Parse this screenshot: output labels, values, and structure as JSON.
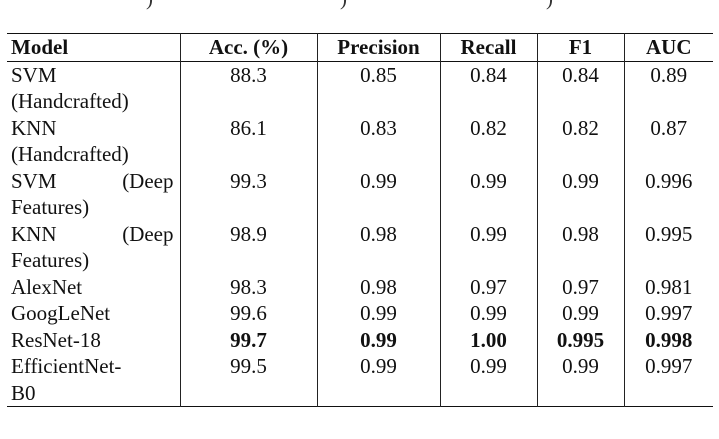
{
  "caption_fragment": [
    ")",
    ")",
    ")"
  ],
  "columns": [
    "Model",
    "Acc. (%)",
    "Precision",
    "Recall",
    "F1",
    "AUC"
  ],
  "rows": [
    {
      "model_line1": "SVM",
      "model_line2": "(Handcrafted)",
      "acc": "88.3",
      "precision": "0.85",
      "recall": "0.84",
      "f1": "0.84",
      "auc": "0.89"
    },
    {
      "model_line1": "KNN",
      "model_line2": "(Handcrafted)",
      "acc": "86.1",
      "precision": "0.83",
      "recall": "0.82",
      "f1": "0.82",
      "auc": "0.87"
    },
    {
      "model_line1": "SVM (Deep",
      "model_line2": "Features)",
      "acc": "99.3",
      "precision": "0.99",
      "recall": "0.99",
      "f1": "0.99",
      "auc": "0.996"
    },
    {
      "model_line1": "KNN (Deep",
      "model_line2": "Features)",
      "acc": "98.9",
      "precision": "0.98",
      "recall": "0.99",
      "f1": "0.98",
      "auc": "0.995"
    },
    {
      "model_line1": "AlexNet",
      "model_line2": "",
      "acc": "98.3",
      "precision": "0.98",
      "recall": "0.97",
      "f1": "0.97",
      "auc": "0.981"
    },
    {
      "model_line1": "GoogLeNet",
      "model_line2": "",
      "acc": "99.6",
      "precision": "0.99",
      "recall": "0.99",
      "f1": "0.99",
      "auc": "0.997"
    },
    {
      "model_line1": "ResNet-18",
      "model_line2": "",
      "acc": "99.7",
      "precision": "0.99",
      "recall": "1.00",
      "f1": "0.995",
      "auc": "0.998",
      "bold_metrics": true
    },
    {
      "model_line1": "EfficientNet-",
      "model_line2": "B0",
      "acc": "99.5",
      "precision": "0.99",
      "recall": "0.99",
      "f1": "0.99",
      "auc": "0.997"
    }
  ]
}
